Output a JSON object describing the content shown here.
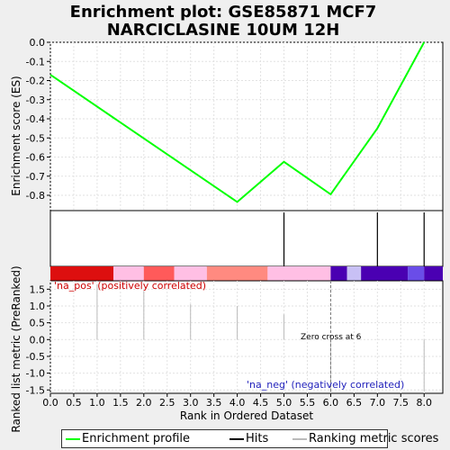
{
  "chart_data": {
    "type": "line",
    "title": "Enrichment plot: GSE85871 MCF7 NARCICLASINE 10UM 12H",
    "title_lines": [
      "Enrichment plot: GSE85871 MCF7",
      "NARCICLASINE 10UM 12H"
    ],
    "xlabel": "Rank in Ordered Dataset",
    "xlim": [
      0,
      8.4
    ],
    "x_ticks": [
      0.0,
      0.5,
      1.0,
      1.5,
      2.0,
      2.5,
      3.0,
      3.5,
      4.0,
      4.5,
      5.0,
      5.5,
      6.0,
      6.5,
      7.0,
      7.5,
      8.0
    ],
    "x_tick_labels": [
      "0.0",
      "0.5",
      "1.0",
      "1.5",
      "2.0",
      "2.5",
      "3.0",
      "3.5",
      "4.0",
      "4.5",
      "5.0",
      "5.5",
      "6.0",
      "6.5",
      "7.0",
      "7.5",
      "8.0"
    ],
    "es_panel": {
      "ylabel": "Enrichment score (ES)",
      "ylim": [
        -0.88,
        0.0
      ],
      "y_ticks": [
        0.0,
        -0.1,
        -0.2,
        -0.3,
        -0.4,
        -0.5,
        -0.6,
        -0.7,
        -0.8
      ],
      "y_tick_labels": [
        "0.0",
        "-0.1",
        "-0.2",
        "-0.3",
        "-0.4",
        "-0.5",
        "-0.6",
        "-0.7",
        "-0.8"
      ],
      "grid": true,
      "series": [
        {
          "name": "Enrichment profile",
          "color": "#00ff00",
          "x": [
            0,
            4,
            5,
            6,
            7,
            8
          ],
          "y": [
            -0.17,
            -0.835,
            -0.625,
            -0.795,
            -0.45,
            0.0
          ]
        }
      ]
    },
    "hits": {
      "name": "Hits",
      "x": [
        5,
        7,
        8
      ],
      "color": "#000000"
    },
    "color_bar": [
      {
        "x0": 0.0,
        "x1": 1.35,
        "color": "#dd0f0f"
      },
      {
        "x0": 1.35,
        "x1": 2.0,
        "color": "#ffbfe4"
      },
      {
        "x0": 2.0,
        "x1": 2.65,
        "color": "#ff5a5a"
      },
      {
        "x0": 2.65,
        "x1": 3.35,
        "color": "#ffbfe4"
      },
      {
        "x0": 3.35,
        "x1": 4.65,
        "color": "#ff8a80"
      },
      {
        "x0": 4.65,
        "x1": 6.0,
        "color": "#ffbfe4"
      },
      {
        "x0": 6.0,
        "x1": 6.35,
        "color": "#4a00b2"
      },
      {
        "x0": 6.35,
        "x1": 6.65,
        "color": "#c8c0f5"
      },
      {
        "x0": 6.65,
        "x1": 7.65,
        "color": "#4a00b2"
      },
      {
        "x0": 7.65,
        "x1": 8.0,
        "color": "#6a4de8"
      },
      {
        "x0": 8.0,
        "x1": 8.4,
        "color": "#4a00b2"
      }
    ],
    "metric_panel": {
      "ylabel": "Ranked list metric (PreRanked)",
      "ylim": [
        -1.6,
        1.75
      ],
      "y_ticks": [
        1.5,
        1.0,
        0.5,
        0.0,
        -0.5,
        -1.0,
        -1.5
      ],
      "y_tick_labels": [
        "1.5",
        "1.0",
        "0.5",
        "0.0",
        "-0.5",
        "-1.0",
        "-1.5"
      ],
      "grid": true,
      "series": [
        {
          "name": "Ranking metric scores",
          "color": "#bbbbbb",
          "x": [
            1,
            2,
            3,
            4,
            5,
            6,
            7,
            8
          ],
          "values": [
            1.65,
            1.45,
            1.05,
            1.0,
            0.75,
            -1.6,
            0.0,
            -1.55
          ]
        }
      ],
      "zero_cross": 6,
      "annotations": {
        "pos": "'na_pos' (positively correlated)",
        "neg": "'na_neg' (negatively correlated)",
        "zero_cross": "Zero cross at 6"
      }
    },
    "legend": {
      "placement": "bottom",
      "entries": [
        {
          "label": "Enrichment profile",
          "color": "#00ff00"
        },
        {
          "label": "Hits",
          "color": "#000000"
        },
        {
          "label": "Ranking metric scores",
          "color": "#bbbbbb"
        }
      ]
    }
  }
}
